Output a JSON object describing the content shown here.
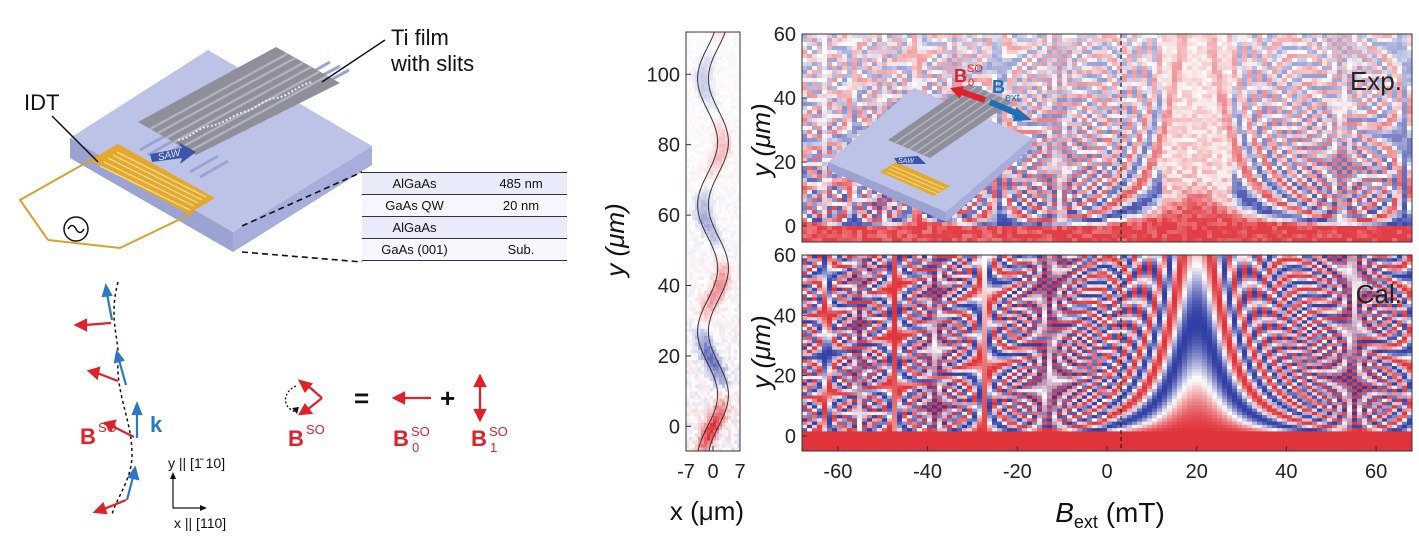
{
  "device": {
    "label_idt": "IDT",
    "label_ti_line1": "Ti film",
    "label_ti_line2": "with slits",
    "label_saw": "SAW",
    "label_saw_inset": "SAW",
    "layers": [
      {
        "material": "AlGaAs",
        "thickness": "485 nm"
      },
      {
        "material": "GaAs QW",
        "thickness": "20 nm"
      },
      {
        "material": "AlGaAs",
        "thickness": ""
      },
      {
        "material": "GaAs (001)",
        "thickness": "Sub."
      }
    ]
  },
  "spin": {
    "b_main": "B",
    "b_sup": "SO",
    "k_label": "k",
    "axis_y": "y || [1̄ 10]",
    "axis_x": "x || [110]",
    "eq_equals": "=",
    "eq_plus": "+",
    "b0_sub": "0",
    "b1_sub": "1"
  },
  "inset_labels": {
    "b_ext": "B",
    "b_ext_sub": "ext",
    "b0": "B",
    "b0_sub": "0",
    "b0_sup": "SO"
  },
  "panel_labels": {
    "exp": "Exp.",
    "cal": "Cal."
  },
  "colors": {
    "red": "#e0202a",
    "blue": "#1e6fb5",
    "map_red": "#e8474c",
    "map_blue": "#2c3f9e",
    "substrate": "#b8bfe2",
    "gold": "#e0a52b"
  },
  "chart_data": [
    {
      "type": "heatmap",
      "title": "",
      "xlabel": "x (μm)",
      "ylabel": "y (μm)",
      "xlim": [
        -7,
        7
      ],
      "ylim": [
        -7,
        112
      ],
      "x_ticks": [
        -7,
        0,
        7
      ],
      "y_ticks": [
        0,
        20,
        40,
        60,
        80,
        100
      ],
      "x_tick_labels": [
        "-7",
        "0",
        "7"
      ],
      "y_tick_labels": [
        "0",
        "20",
        "40",
        "60",
        "80",
        "100"
      ]
    },
    {
      "type": "heatmap",
      "title": "",
      "panel": "Exp.",
      "xlabel": "",
      "ylabel": "y (μm)",
      "xlim": [
        -68,
        68
      ],
      "ylim": [
        -5,
        60
      ],
      "y_ticks": [
        0,
        20,
        40,
        60
      ],
      "y_tick_labels": [
        "0",
        "20",
        "40",
        "60"
      ],
      "grid": false
    },
    {
      "type": "heatmap",
      "title": "",
      "panel": "Cal.",
      "xlabel": "B_ext (mT)",
      "ylabel": "y (μm)",
      "xlim": [
        -68,
        68
      ],
      "ylim": [
        -5,
        60
      ],
      "x_ticks": [
        -60,
        -40,
        -20,
        0,
        20,
        40,
        60
      ],
      "x_tick_labels": [
        "-60",
        "-40",
        "-20",
        "0",
        "20",
        "40",
        "60"
      ],
      "y_ticks": [
        0,
        20,
        40,
        60
      ],
      "y_tick_labels": [
        "0",
        "20",
        "40",
        "60"
      ],
      "grid": false
    }
  ]
}
